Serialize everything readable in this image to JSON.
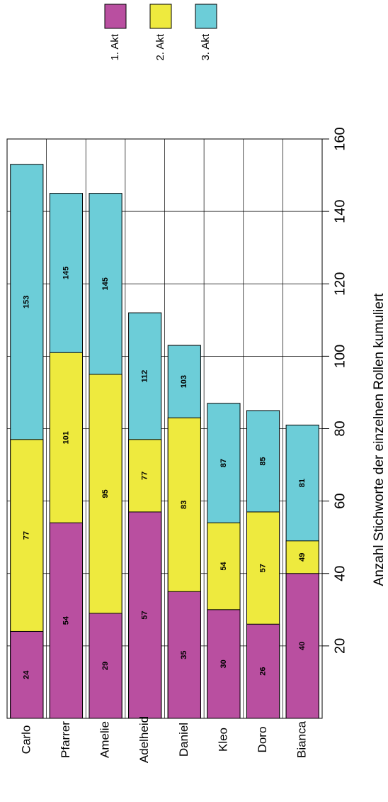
{
  "chart_data": {
    "type": "bar",
    "x_label": "Anzahl Stichworte der einzelnen Rollen kumuliert",
    "categories": [
      "Carlo",
      "Pfarrer",
      "Amelie",
      "Adelheid",
      "Daniel",
      "Kleo",
      "Doro",
      "Bianca"
    ],
    "series": [
      {
        "name": "1. Akt",
        "color": "#b94fa0",
        "values": [
          24,
          54,
          29,
          57,
          35,
          30,
          26,
          40
        ]
      },
      {
        "name": "2. Akt",
        "color": "#eeea3e",
        "values": [
          77,
          101,
          95,
          77,
          83,
          54,
          57,
          49
        ]
      },
      {
        "name": "3. Akt",
        "color": "#6ccdd8",
        "values": [
          153,
          145,
          145,
          112,
          103,
          87,
          85,
          81
        ]
      }
    ],
    "ylim": [
      0,
      160
    ],
    "yticks": [
      20,
      40,
      60,
      80,
      100,
      120,
      140,
      160
    ],
    "grid": true
  }
}
